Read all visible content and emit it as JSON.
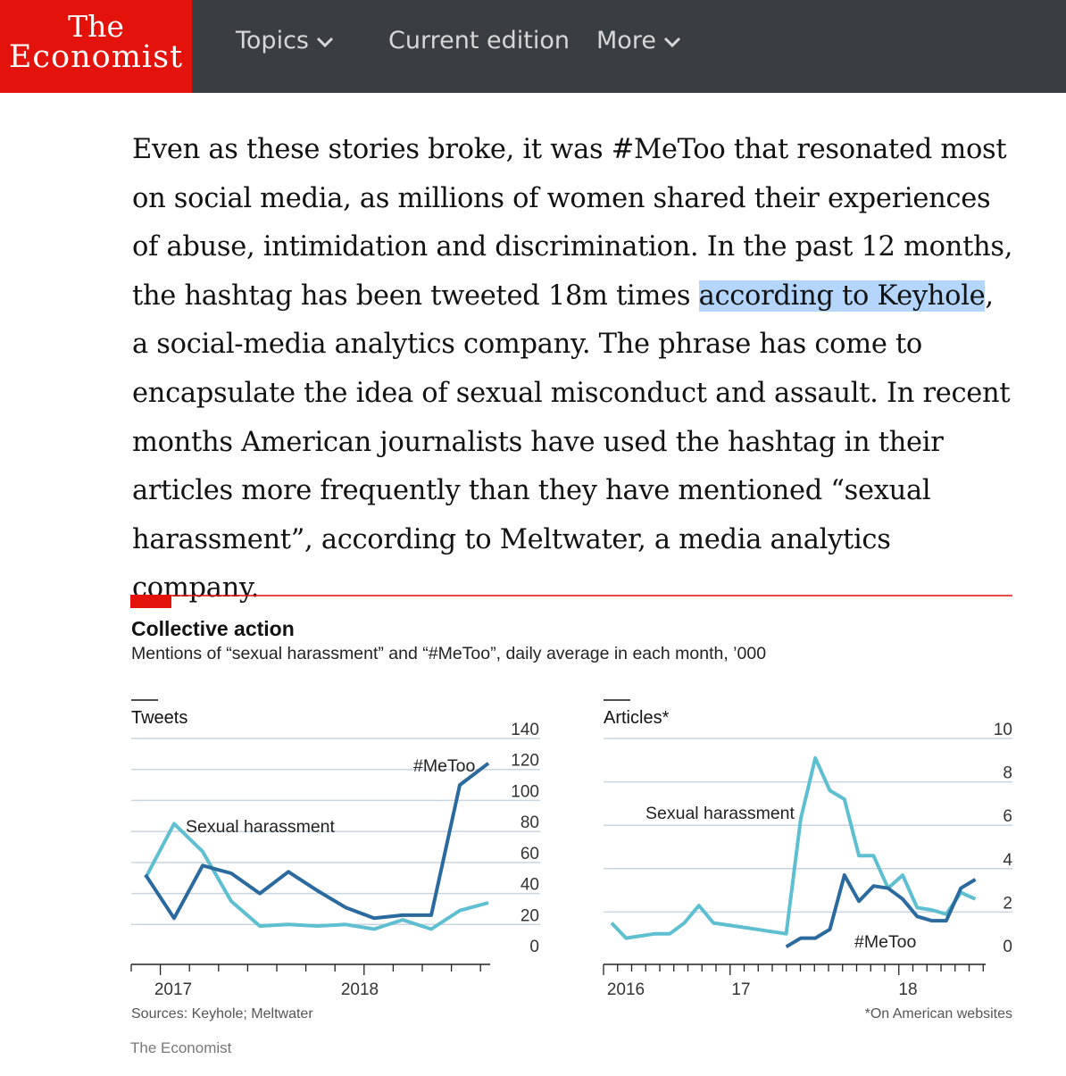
{
  "header": {
    "logo_line1": "The",
    "logo_line2": "Economist",
    "nav": [
      {
        "label": "Topics"
      },
      {
        "label": "Current edition"
      },
      {
        "label": "More"
      }
    ]
  },
  "article": {
    "text_before": "Even as these stories broke, it was #MeToo that resonated most on social media, as millions of women shared their experiences of abuse, intimidation and discrimination. In the past 12 months, the hashtag has been tweeted 18m times ",
    "link_text": "according to Keyhole",
    "text_after": ", a social-media analytics company. The phrase has come to encapsulate the idea of sexual misconduct and assault. In recent months American journalists have used the hashtag in their articles more frequently than they have mentioned “sexual harassment”, according to Meltwater, a media analytics company."
  },
  "figure": {
    "title": "Collective action",
    "subtitle": "Mentions of  “sexual harassment” and “#MeToo”, daily average in each month, ’000",
    "source": "Sources: Keyhole; Meltwater",
    "footnote": "*On American websites",
    "credit": "The Economist",
    "colors": {
      "accent": "#e3120b",
      "metoo": "#2a6a9e",
      "harassment": "#5ebfd1",
      "grid": "#c9d5df"
    }
  },
  "chart_data": [
    {
      "type": "line",
      "title": "Tweets",
      "ylim": [
        0,
        140
      ],
      "yticks": [
        0,
        20,
        40,
        60,
        80,
        100,
        120,
        140
      ],
      "x_tick_labels": [
        "2017",
        "2018"
      ],
      "grid": true,
      "series": [
        {
          "name": "#MeToo",
          "color": "#2a6a9e",
          "values": [
            52,
            24,
            58,
            53,
            40,
            54,
            42,
            31,
            24,
            26,
            26,
            110,
            124
          ]
        },
        {
          "name": "Sexual harassment",
          "color": "#5ebfd1",
          "values": [
            50,
            85,
            67,
            35,
            19,
            20,
            19,
            20,
            17,
            23,
            17,
            29,
            34
          ]
        }
      ]
    },
    {
      "type": "line",
      "title": "Articles*",
      "ylim": [
        0,
        10
      ],
      "yticks": [
        0,
        2,
        4,
        6,
        8,
        10
      ],
      "x_tick_labels": [
        "2016",
        "17",
        "18"
      ],
      "grid": true,
      "series": [
        {
          "name": "Sexual harassment",
          "color": "#5ebfd1",
          "values": [
            1.5,
            0.8,
            0.9,
            1.0,
            1.0,
            1.5,
            2.3,
            1.5,
            1.4,
            1.3,
            1.2,
            1.1,
            1.0,
            6.3,
            9.1,
            7.6,
            7.2,
            4.6,
            4.6,
            3.1,
            3.7,
            2.2,
            2.1,
            1.9,
            2.9,
            2.6
          ],
          "start_index": 0
        },
        {
          "name": "#MeToo",
          "color": "#2a6a9e",
          "values": [
            0.4,
            0.8,
            0.8,
            1.2,
            3.7,
            2.5,
            3.2,
            3.1,
            2.6,
            1.8,
            1.6,
            1.6,
            3.1,
            3.5
          ],
          "start_index": 12
        }
      ]
    }
  ]
}
